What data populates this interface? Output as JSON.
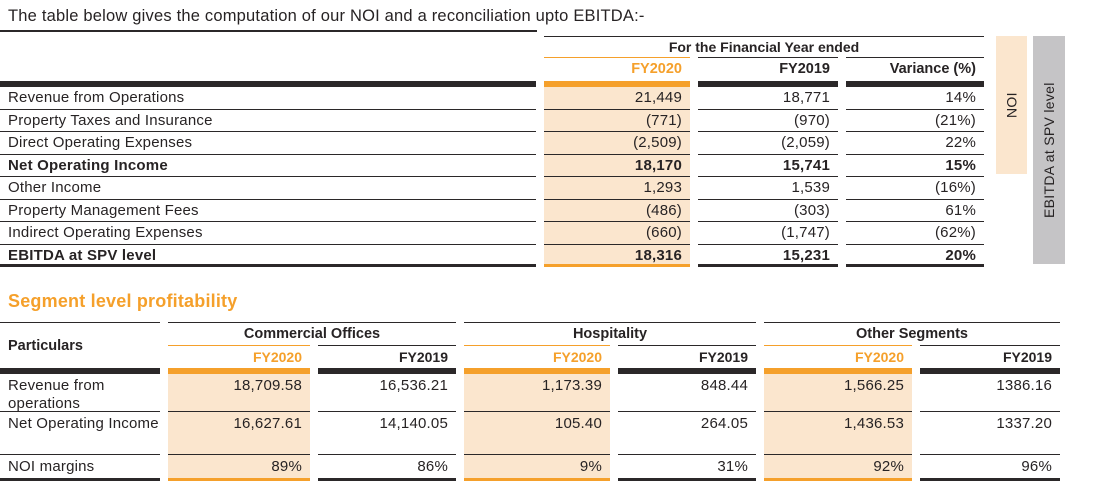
{
  "page": {
    "intro": "The table below gives the computation of our NOI and a reconciliation upto EBITDA:-",
    "section2_title": "Segment level profitability"
  },
  "colors": {
    "accent": "#F5A02B",
    "peach": "#FBE6CE",
    "gray": "#C5C4C6",
    "ink": "#272324"
  },
  "noi_table": {
    "spanner": "For the Financial Year ended",
    "columns": {
      "fy2020": "FY2020",
      "fy2019": "FY2019",
      "variance": "Variance (%)"
    },
    "side_labels": {
      "noi": "NOI",
      "ebitda": "EBITDA at SPV level"
    },
    "rows": [
      {
        "label": "Revenue from Operations",
        "fy2020": "21,449",
        "fy2019": "18,771",
        "variance": "14%"
      },
      {
        "label": "Property Taxes and Insurance",
        "fy2020": "(771)",
        "fy2019": "(970)",
        "variance": "(21%)"
      },
      {
        "label": "Direct Operating Expenses",
        "fy2020": "(2,509)",
        "fy2019": "(2,059)",
        "variance": "22%"
      },
      {
        "label": "Net Operating Income",
        "fy2020": "18,170",
        "fy2019": "15,741",
        "variance": "15%"
      },
      {
        "label": "Other Income",
        "fy2020": "1,293",
        "fy2019": "1,539",
        "variance": "(16%)"
      },
      {
        "label": "Property Management Fees",
        "fy2020": "(486)",
        "fy2019": "(303)",
        "variance": "61%"
      },
      {
        "label": "Indirect Operating Expenses",
        "fy2020": "(660)",
        "fy2019": "(1,747)",
        "variance": "(62%)"
      },
      {
        "label": "EBITDA at SPV level",
        "fy2020": "18,316",
        "fy2019": "15,231",
        "variance": "20%"
      }
    ]
  },
  "segment_table": {
    "particulars_label": "Particulars",
    "groups": [
      "Commercial Offices",
      "Hospitality",
      "Other Segments"
    ],
    "year_labels": {
      "fy2020": "FY2020",
      "fy2019": "FY2019"
    },
    "rows": [
      {
        "label": "Revenue from operations",
        "values": [
          "18,709.58",
          "16,536.21",
          "1,173.39",
          "848.44",
          "1,566.25",
          "1386.16"
        ]
      },
      {
        "label": "Net Operating Income",
        "values": [
          "16,627.61",
          "14,140.05",
          "105.40",
          "264.05",
          "1,436.53",
          "1337.20"
        ]
      },
      {
        "label": "NOI margins",
        "values": [
          "89%",
          "86%",
          "9%",
          "31%",
          "92%",
          "96%"
        ]
      }
    ]
  }
}
